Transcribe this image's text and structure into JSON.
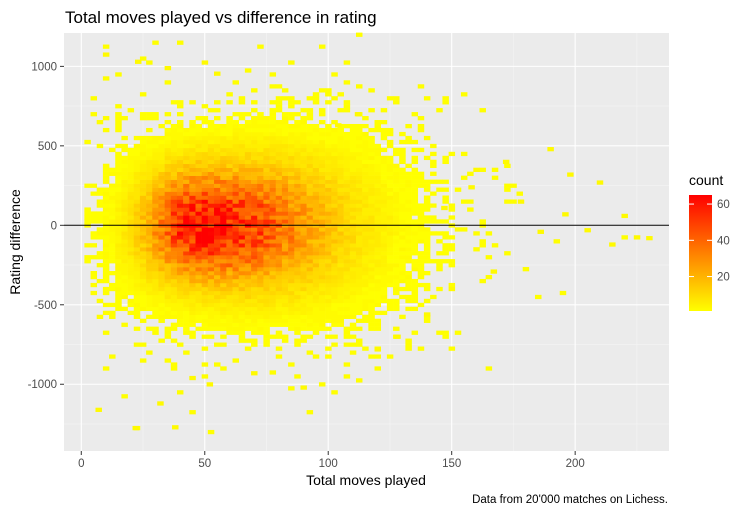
{
  "chart_data": {
    "type": "heatmap",
    "title": "Total moves played vs difference in rating",
    "xlabel": "Total moves played",
    "ylabel": "Rating difference",
    "caption": "Data from 20'000 matches on Lichess.",
    "xlim": [
      -7,
      238
    ],
    "ylim": [
      -1420,
      1210
    ],
    "x_ticks": [
      0,
      50,
      100,
      150,
      200
    ],
    "x_tick_labels": [
      "0",
      "50",
      "100",
      "150",
      "200"
    ],
    "y_ticks": [
      1000,
      500,
      0,
      -500,
      -1000
    ],
    "y_tick_labels": [
      "1000",
      "500",
      "0",
      "-500",
      "-1000"
    ],
    "grid": true,
    "reference_line": {
      "y": 0
    },
    "legend": {
      "title": "count",
      "placement": "right",
      "ticks": [
        20,
        40,
        60
      ],
      "range": [
        1,
        65
      ],
      "colors": {
        "low": "#FFFF00",
        "high": "#FF0000"
      }
    },
    "bin_size": {
      "x": 2.5,
      "y": 25
    },
    "density_model": {
      "peak_count": 62,
      "center_x": 48,
      "sigma_x_left": 14,
      "sigma_x_right": 32,
      "sigma_y": 220,
      "max_moves": 228
    },
    "outliers": [
      [
        10,
        1075
      ],
      [
        23,
        1030
      ],
      [
        35,
        990
      ],
      [
        50,
        1025
      ],
      [
        55,
        955
      ],
      [
        7,
        -1160
      ],
      [
        22,
        -1275
      ],
      [
        38,
        -1270
      ],
      [
        32,
        -1120
      ],
      [
        45,
        -960
      ],
      [
        52,
        -1000
      ],
      [
        90,
        -1020
      ],
      [
        70,
        -930
      ],
      [
        120,
        -780
      ],
      [
        128,
        -700
      ],
      [
        190,
        480
      ],
      [
        172,
        400
      ],
      [
        210,
        270
      ],
      [
        215,
        -120
      ],
      [
        225,
        -75
      ],
      [
        230,
        -80
      ],
      [
        196,
        70
      ],
      [
        220,
        60
      ],
      [
        198,
        320
      ],
      [
        205,
        -30
      ],
      [
        186,
        -40
      ],
      [
        160,
        350
      ],
      [
        167,
        -290
      ],
      [
        150,
        -400
      ],
      [
        140,
        -560
      ],
      [
        112,
        700
      ],
      [
        104,
        630
      ],
      [
        147,
        110
      ],
      [
        158,
        240
      ],
      [
        178,
        150
      ]
    ]
  }
}
